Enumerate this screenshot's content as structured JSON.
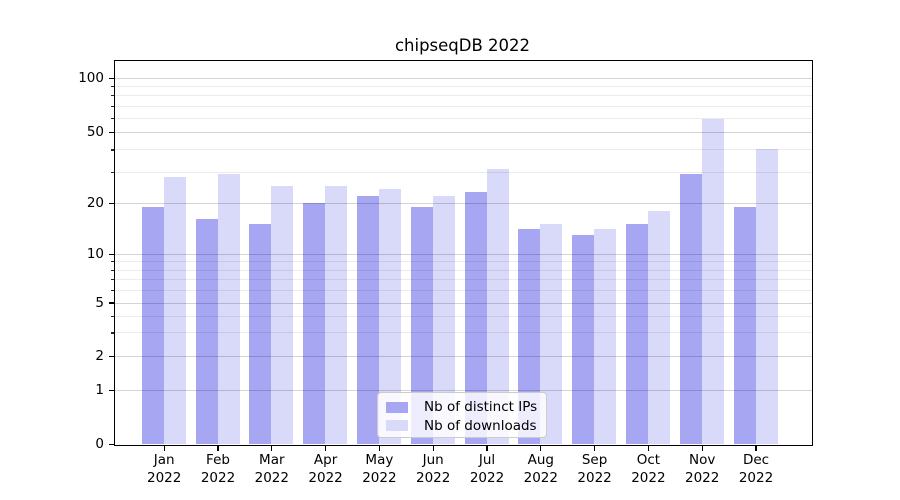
{
  "title": "chipseqDB 2022",
  "chart_data": {
    "type": "bar",
    "title": "chipseqDB 2022",
    "categories": [
      "Jan 2022",
      "Feb 2022",
      "Mar 2022",
      "Apr 2022",
      "May 2022",
      "Jun 2022",
      "Jul 2022",
      "Aug 2022",
      "Sep 2022",
      "Oct 2022",
      "Nov 2022",
      "Dec 2022"
    ],
    "series": [
      {
        "name": "Nb of distinct IPs",
        "color": "#a6a6f3",
        "values": [
          19,
          16,
          15,
          20,
          22,
          19,
          23,
          14,
          13,
          15,
          29,
          19
        ]
      },
      {
        "name": "Nb of downloads",
        "color": "#d9d9f9",
        "values": [
          28,
          29,
          25,
          25,
          24,
          22,
          31,
          15,
          14,
          18,
          59,
          40
        ]
      }
    ],
    "xlabel": "",
    "ylabel": "",
    "yscale": "asinh (linear 0-1, logarithmic above)",
    "ylim": [
      0,
      126
    ],
    "y_major_ticks": [
      0,
      1,
      2,
      5,
      10,
      20,
      50,
      100
    ],
    "y_minor_ticks": [
      3,
      4,
      6,
      7,
      8,
      9,
      30,
      40,
      60,
      70,
      80,
      90
    ],
    "grid": "on",
    "legend_position": "lower center"
  },
  "colors": {
    "background": "#ffffff",
    "axis": "#000000",
    "legend_border": "#cccccc"
  }
}
